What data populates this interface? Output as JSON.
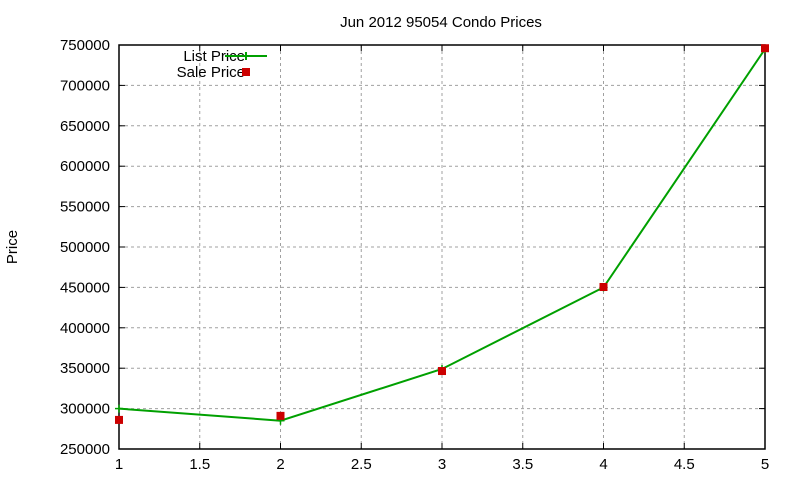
{
  "chart_data": {
    "type": "line",
    "title": "Jun 2012 95054 Condo Prices",
    "xlabel": "",
    "ylabel": "Price",
    "xlim": [
      1,
      5
    ],
    "ylim": [
      250000,
      750000
    ],
    "grid": true,
    "legend_position": "top-left",
    "x_ticks": [
      "1",
      "1.5",
      "2",
      "2.5",
      "3",
      "3.5",
      "4",
      "4.5",
      "5"
    ],
    "y_ticks": [
      "250000",
      "300000",
      "350000",
      "400000",
      "450000",
      "500000",
      "550000",
      "600000",
      "650000",
      "700000",
      "750000"
    ],
    "x": [
      1,
      2,
      3,
      4,
      5
    ],
    "series": [
      {
        "name": "List Price",
        "style": "linespoints",
        "color": "#00a000",
        "values": [
          300000,
          285000,
          349000,
          450000,
          745000
        ]
      },
      {
        "name": "Sale Price",
        "style": "points",
        "color": "#cc0000",
        "values": [
          286000,
          291000,
          346500,
          450500,
          746000
        ]
      }
    ]
  }
}
